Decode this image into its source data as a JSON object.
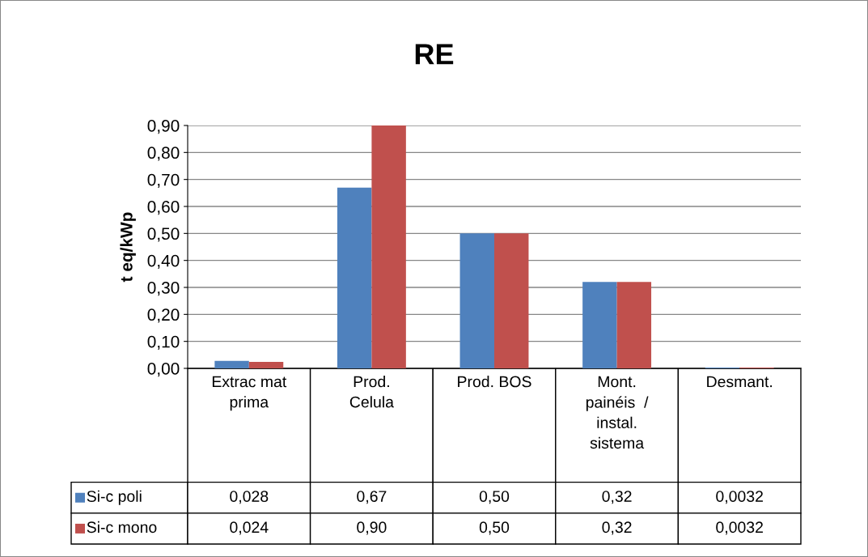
{
  "chart_data": {
    "type": "bar",
    "title": "RE",
    "ylabel": "t eq/kWp",
    "categories": [
      "Extrac mat\nprima",
      "Prod.\nCelula",
      "Prod. BOS",
      "Mont.\npainéis  /\ninstal.\nsistema",
      "Desmant."
    ],
    "series": [
      {
        "name": "Si-c poli",
        "color": "#4f81bd",
        "values": [
          0.028,
          0.67,
          0.5,
          0.32,
          0.0032
        ],
        "value_labels": [
          "0,028",
          "0,67",
          "0,50",
          "0,32",
          "0,0032"
        ]
      },
      {
        "name": "Si-c mono",
        "color": "#c0504d",
        "values": [
          0.024,
          0.9,
          0.5,
          0.32,
          0.0032
        ],
        "value_labels": [
          "0,024",
          "0,90",
          "0,50",
          "0,32",
          "0,0032"
        ]
      }
    ],
    "ylim": [
      0,
      0.9
    ],
    "yticks": [
      {
        "value": 0,
        "label": "0,00"
      },
      {
        "value": 0.1,
        "label": "0,10"
      },
      {
        "value": 0.2,
        "label": "0,20"
      },
      {
        "value": 0.3,
        "label": "0,30"
      },
      {
        "value": 0.4,
        "label": "0,40"
      },
      {
        "value": 0.5,
        "label": "0,50"
      },
      {
        "value": 0.6,
        "label": "0,60"
      },
      {
        "value": 0.7,
        "label": "0,70"
      },
      {
        "value": 0.8,
        "label": "0,80"
      },
      {
        "value": 0.9,
        "label": "0,90"
      }
    ],
    "grid": "y",
    "legend": "bottom left"
  }
}
